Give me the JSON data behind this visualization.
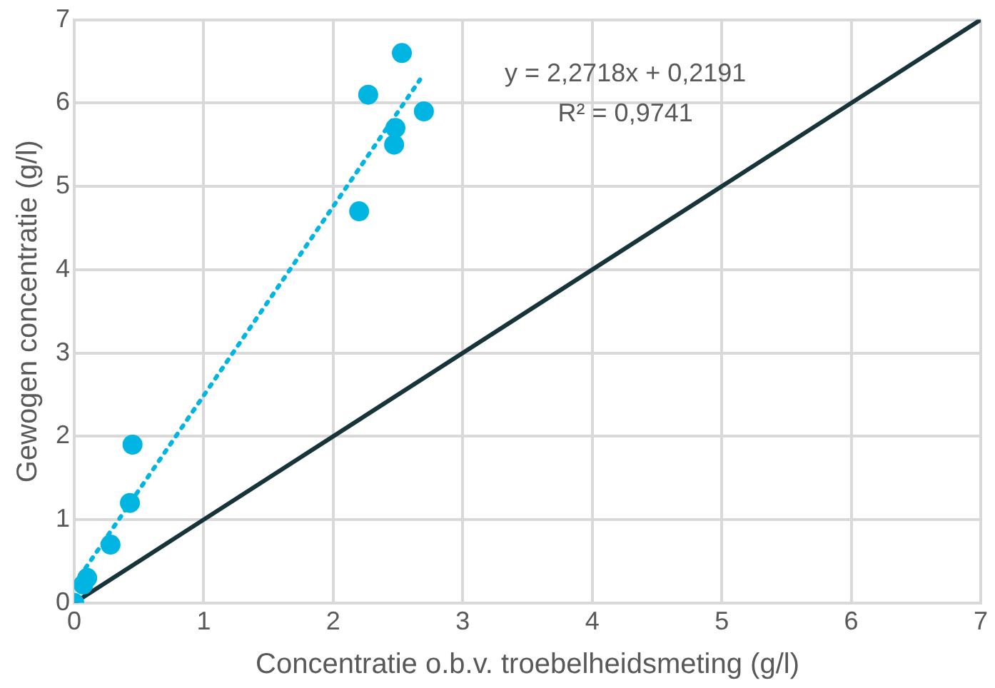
{
  "chart_data": {
    "type": "scatter",
    "xlabel": "Concentratie o.b.v. troebelheidsmeting (g/l)",
    "ylabel": "Gewogen concentratie (g/l)",
    "xlim": [
      0,
      7
    ],
    "xticks": [
      0,
      1,
      2,
      3,
      4,
      5,
      6,
      7
    ],
    "ylim": [
      0,
      7
    ],
    "yticks": [
      0,
      1,
      2,
      3,
      4,
      5,
      6,
      7
    ],
    "grid": true,
    "legend": false,
    "marker": "circle",
    "annotations": [
      "y = 2,2718x + 0,2191",
      "R² = 0,9741"
    ],
    "series": [
      {
        "type": "scatter",
        "color": "#00b5e2",
        "x": [
          0,
          0.07,
          0.1,
          0.28,
          0.43,
          0.45,
          2.2,
          2.27,
          2.47,
          2.48,
          2.53,
          2.7
        ],
        "values": [
          0,
          0.22,
          0.3,
          0.7,
          1.2,
          1.9,
          4.7,
          6.1,
          5.5,
          5.7,
          6.6,
          5.9
        ]
      },
      {
        "type": "line",
        "color": "#00b5e2",
        "line_style": "dotted",
        "marker": "none",
        "x": [
          0,
          2.67
        ],
        "values": [
          0.22,
          6.28
        ]
      },
      {
        "type": "line",
        "color": "#17343a",
        "line_style": "solid",
        "marker": "none",
        "x": [
          0,
          7
        ],
        "values": [
          0,
          7
        ]
      }
    ]
  }
}
